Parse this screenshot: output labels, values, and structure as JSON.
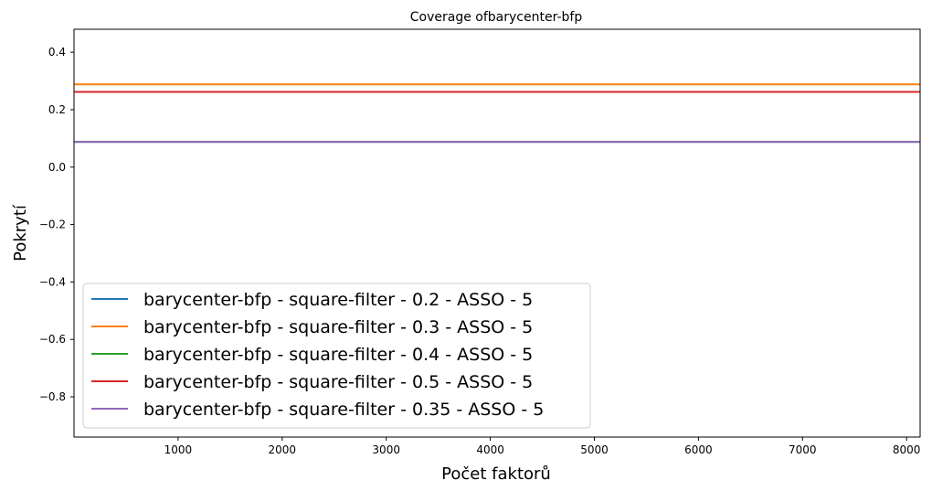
{
  "chart_data": {
    "type": "line",
    "title": "Coverage ofbarycenter-bfp",
    "xlabel": "Počet faktorů",
    "ylabel": "Pokrytí",
    "xlim": [
      0,
      8130
    ],
    "ylim": [
      -0.94,
      0.48
    ],
    "xticks": [
      1000,
      2000,
      3000,
      4000,
      5000,
      6000,
      7000,
      8000
    ],
    "xtick_labels": [
      "1000",
      "2000",
      "3000",
      "4000",
      "5000",
      "6000",
      "7000",
      "8000"
    ],
    "yticks": [
      -0.8,
      -0.6,
      -0.4,
      -0.2,
      0.0,
      0.2,
      0.4
    ],
    "ytick_labels": [
      "−0.8",
      "−0.6",
      "−0.4",
      "−0.2",
      "0.0",
      "0.2",
      "0.4"
    ],
    "grid": false,
    "legend_position": "lower-left",
    "series": [
      {
        "name": "barycenter-bfp - square-filter - 0.2 - ASSO - 5",
        "color": "#1f77b4",
        "x": [
          0,
          8130
        ],
        "y": [
          0.088,
          0.088
        ]
      },
      {
        "name": "barycenter-bfp - square-filter - 0.3 - ASSO - 5",
        "color": "#ff7f0e",
        "x": [
          0,
          8130
        ],
        "y": [
          0.288,
          0.288
        ]
      },
      {
        "name": "barycenter-bfp - square-filter - 0.4 - ASSO - 5",
        "color": "#2ca02c",
        "x": [
          0,
          8130
        ],
        "y": [
          0.088,
          0.088
        ]
      },
      {
        "name": "barycenter-bfp - square-filter - 0.5 - ASSO - 5",
        "color": "#d62728",
        "x": [
          0,
          8130
        ],
        "y": [
          0.262,
          0.262
        ]
      },
      {
        "name": "barycenter-bfp - square-filter - 0.35 - ASSO - 5",
        "color": "#9467bd",
        "x": [
          0,
          8130
        ],
        "y": [
          0.088,
          0.088
        ]
      }
    ]
  }
}
